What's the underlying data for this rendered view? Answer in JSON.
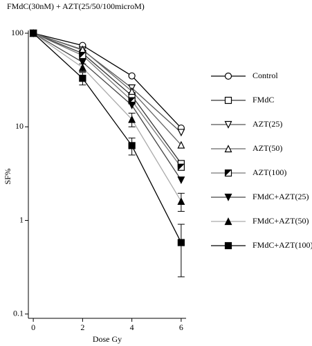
{
  "chart_data": {
    "type": "line",
    "title": "FMdC(30nM) + AZT(25/50/100microM)",
    "x_label": "Dose Gy",
    "y_label": "SF%",
    "x": [
      0,
      2,
      4,
      6
    ],
    "xlim": [
      -0.2,
      6.2
    ],
    "xticks": [
      0,
      2,
      4,
      6
    ],
    "ylim": [
      0.09,
      100
    ],
    "yticks": [
      100,
      10,
      1,
      0.1
    ],
    "log_y": true,
    "grid": false,
    "legend": "right",
    "series": [
      {
        "name": "Control",
        "color": "#000000",
        "marker": "circle",
        "marker_fill": "open",
        "values": [
          100,
          74,
          35,
          9.7
        ]
      },
      {
        "name": "FMdC",
        "color": "#333333",
        "marker": "square",
        "marker_fill": "open",
        "values": [
          100,
          61,
          21.5,
          4.05
        ]
      },
      {
        "name": "AZT(25)",
        "color": "#555555",
        "marker": "triangle-down",
        "marker_fill": "open",
        "values": [
          100,
          66,
          26,
          8.7
        ]
      },
      {
        "name": "AZT(50)",
        "color": "#666666",
        "marker": "triangle-up",
        "marker_fill": "open",
        "values": [
          100,
          67,
          24,
          6.4
        ]
      },
      {
        "name": "AZT(100)",
        "color": "#777777",
        "marker": "square",
        "marker_fill": "half",
        "values": [
          100,
          58,
          19,
          3.7
        ]
      },
      {
        "name": "FMdC+AZT(25)",
        "color": "#444444",
        "marker": "triangle-down",
        "marker_fill": "filled",
        "values": [
          100,
          49,
          17,
          2.7
        ]
      },
      {
        "name": "FMdC+AZT(50)",
        "color": "#aaaaaa",
        "marker": "triangle-up",
        "marker_fill": "filled",
        "values": [
          100,
          43,
          12,
          1.6
        ],
        "errors": [
          null,
          4,
          2,
          0.35
        ]
      },
      {
        "name": "FMdC+AZT(100)",
        "color": "#000000",
        "marker": "square",
        "marker_fill": "filled",
        "values": [
          100,
          33,
          6.3,
          0.58
        ],
        "errors": [
          null,
          5,
          1.3,
          0.33
        ]
      }
    ]
  }
}
